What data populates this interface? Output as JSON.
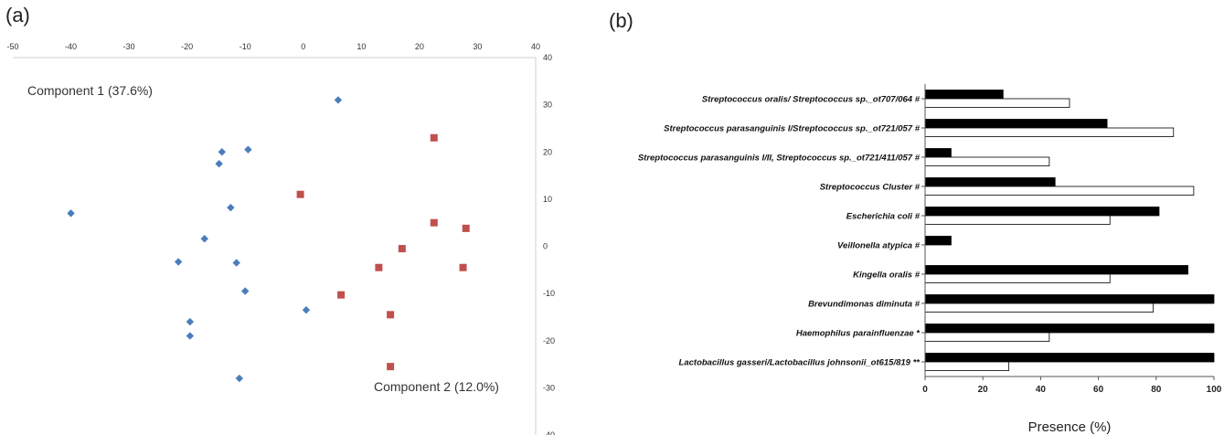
{
  "chart_data": [
    {
      "panel": "(a)",
      "type": "scatter",
      "xlim": [
        -50,
        40
      ],
      "ylim": [
        -40,
        40
      ],
      "x_ticks": [
        "-50",
        "-40",
        "-30",
        "-20",
        "-10",
        "0",
        "10",
        "20",
        "30",
        "40"
      ],
      "y_ticks": [
        "40",
        "30",
        "20",
        "10",
        "0",
        "-10",
        "-20",
        "-30",
        "-40"
      ],
      "grid": false,
      "annotations": {
        "component1": "Component 1 (37.6%)",
        "component2": "Component 2 (12.0%)"
      },
      "series": [
        {
          "marker": "diamond",
          "color": "#4a7ebb",
          "points": [
            [
              6,
              31
            ],
            [
              -14,
              20
            ],
            [
              -9.5,
              20.5
            ],
            [
              -14.5,
              17.5
            ],
            [
              -12.5,
              8.2
            ],
            [
              -40,
              7
            ],
            [
              -17,
              1.6
            ],
            [
              -21.5,
              -3.3
            ],
            [
              -11.5,
              -3.5
            ],
            [
              -10,
              -9.5
            ],
            [
              0.5,
              -13.5
            ],
            [
              -19.5,
              -16
            ],
            [
              -19.5,
              -19
            ],
            [
              -11,
              -28
            ]
          ]
        },
        {
          "marker": "square",
          "color": "#c0504d",
          "points": [
            [
              22.5,
              23
            ],
            [
              -0.5,
              11
            ],
            [
              22.5,
              5
            ],
            [
              28,
              3.8
            ],
            [
              17,
              -0.5
            ],
            [
              13,
              -4.5
            ],
            [
              27.5,
              -4.5
            ],
            [
              6.5,
              -10.3
            ],
            [
              15,
              -14.5
            ],
            [
              15,
              -25.5
            ]
          ]
        }
      ]
    },
    {
      "panel": "(b)",
      "type": "bar",
      "orientation": "horizontal",
      "categories": [
        "Streptococcus oralis/ Streptococcus sp._ot707/064 #",
        "Streptococcus parasanguinis I/Streptococcus sp._ot721/057 #",
        "Streptococcus parasanguinis I/II, Streptococcus sp._ot721/411/057 #",
        "Streptococcus Cluster  #",
        "Escherichia coli #",
        "Veillonella atypica #",
        "Kingella oralis #",
        "Brevundimonas diminuta #",
        "Haemophilus parainfluenzae *",
        "Lactobacillus gasseri/Lactobacillus johnsonii_ot615/819 **"
      ],
      "series": [
        {
          "fill": "#000000",
          "values": [
            27,
            63,
            9,
            45,
            81,
            9,
            91,
            100,
            100,
            100
          ]
        },
        {
          "fill": "#ffffff",
          "values": [
            50,
            86,
            43,
            93,
            64,
            0,
            64,
            79,
            43,
            29
          ]
        }
      ],
      "xlim": [
        0,
        100
      ],
      "x_ticks": [
        "0",
        "20",
        "40",
        "60",
        "80",
        "100"
      ],
      "xlabel": "Presence (%)",
      "ylabel": ""
    }
  ]
}
